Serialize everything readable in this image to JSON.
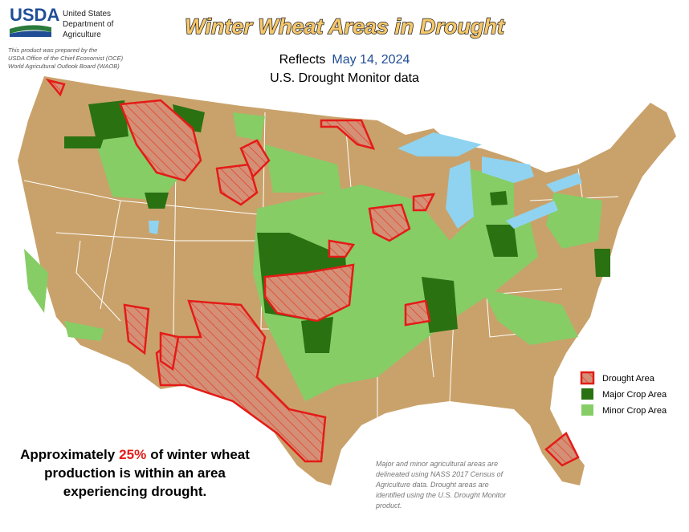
{
  "header": {
    "agency": "USDA",
    "department": [
      "United States",
      "Department of",
      "Agriculture"
    ],
    "credit": [
      "This product was prepared by the",
      "USDA Office of the Chief Economist (OCE)",
      "World Agricultural Outlook Board (WAOB)"
    ],
    "title": "Winter Wheat Areas in Drought",
    "reflects": "Reflects",
    "date": "May 14, 2024",
    "source": "U.S. Drought Monitor data"
  },
  "legend": [
    "Drought Area",
    "Major Crop Area",
    "Minor Crop Area"
  ],
  "summary": {
    "lead": "Approximately",
    "share": "25%",
    "lines": [
      "of winter wheat",
      "production is within an area",
      "experiencing drought."
    ]
  },
  "note": [
    "Major and minor agricultural areas are",
    "delineated using NASS 2017 Census of",
    "Agriculture data.  Drought areas are",
    "identified using the U.S. Drought Monitor",
    "product."
  ]
}
